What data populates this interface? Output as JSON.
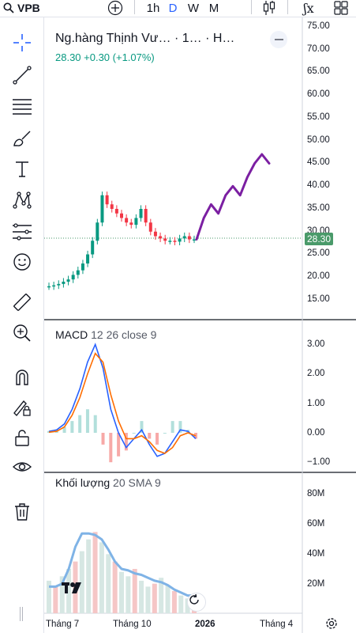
{
  "header": {
    "symbol": "VPB",
    "intervals": [
      "1h",
      "D",
      "W",
      "M"
    ],
    "active_interval": "D",
    "icons": [
      "search-icon",
      "plus-icon",
      "candles-icon",
      "indicators-icon",
      "templates-icon"
    ]
  },
  "left_toolbar": {
    "tools": [
      "crosshair-icon",
      "trend-line-icon",
      "fib-icon",
      "brush-icon",
      "text-icon",
      "pattern-icon",
      "forecast-icon",
      "emoji-icon",
      "ruler-icon",
      "zoom-in-icon",
      "magnet-icon",
      "lock-drawing-icon",
      "lock-icon",
      "eye-icon",
      "trash-icon"
    ]
  },
  "main_pane": {
    "title": "Ng.hàng Thịnh Vư…  · 1…  · H…",
    "price_line": "28.30  +0.30 (+1.07%)",
    "current_price": "28.30",
    "scale_ticks": [
      "75.00",
      "70.00",
      "65.00",
      "60.00",
      "55.00",
      "50.00",
      "45.00",
      "40.00",
      "35.00",
      "30.00",
      "25.00",
      "20.00",
      "15.00"
    ]
  },
  "macd_pane": {
    "name": "MACD",
    "params": "12 26 close 9",
    "scale_ticks": [
      "3.00",
      "2.00",
      "1.00",
      "0.00",
      "−1.00"
    ]
  },
  "volume_pane": {
    "name": "Khối lượng",
    "params": "20 SMA 9",
    "scale_ticks": [
      "80M",
      "60M",
      "40M",
      "20M"
    ]
  },
  "time_axis": {
    "labels": [
      "Tháng 7",
      "Tháng 10",
      "2026",
      "Tháng 4"
    ]
  },
  "colors": {
    "up": "#089981",
    "down": "#f23645",
    "macd": "#2962ff",
    "signal": "#ff6d00",
    "volume_sma": "#7fb3e6",
    "forecast": "#7b1fa2",
    "price_badge": "#4a9a6a"
  },
  "chart_data": [
    {
      "type": "line",
      "title": "Ng.hàng Thịnh Vư…",
      "ylim": [
        15,
        75
      ],
      "series": [
        {
          "name": "price",
          "values": [
            18,
            18.2,
            18.5,
            19,
            19.5,
            20.5,
            21.5,
            23,
            25,
            28,
            32,
            38,
            36,
            35,
            34,
            33,
            32,
            31.5,
            33,
            35,
            32,
            30,
            29,
            28.5,
            28,
            28,
            27.8,
            28.5,
            29,
            28.3,
            28.3
          ]
        },
        {
          "values": [
            28.3,
            33,
            36,
            34,
            38,
            40,
            38,
            42,
            45,
            47,
            45
          ]
        }
      ]
    },
    {
      "type": "line",
      "title": "MACD",
      "ylim": [
        -1,
        3.5
      ],
      "series": [
        {
          "name": "MACD",
          "values": [
            0.05,
            0.1,
            0.3,
            0.8,
            1.5,
            2.4,
            3.0,
            2.2,
            0.8,
            0.0,
            -0.5,
            -0.2,
            0.1,
            -0.4,
            -0.8,
            -0.7,
            -0.3,
            0.1,
            0.05,
            -0.2
          ]
        },
        {
          "name": "signal",
          "values": [
            0.02,
            0.05,
            0.2,
            0.6,
            1.2,
            2.0,
            2.7,
            2.4,
            1.3,
            0.4,
            -0.2,
            -0.2,
            -0.1,
            -0.3,
            -0.6,
            -0.7,
            -0.5,
            -0.1,
            0.0,
            -0.1
          ]
        }
      ]
    },
    {
      "type": "bar",
      "title": "Khối lượng",
      "ylim": [
        0,
        90
      ],
      "values": [
        22,
        18,
        25,
        30,
        35,
        42,
        50,
        55,
        48,
        40,
        35,
        28,
        25,
        30,
        22,
        18,
        20,
        24,
        19,
        15,
        12,
        10,
        9
      ],
      "series": [
        {
          "name": "SMA 9",
          "values": [
            18,
            18,
            20,
            30,
            45,
            54,
            54,
            53,
            50,
            43,
            35,
            30,
            29,
            27,
            26,
            24,
            22,
            21,
            19,
            16,
            14,
            12,
            12
          ]
        }
      ]
    }
  ]
}
